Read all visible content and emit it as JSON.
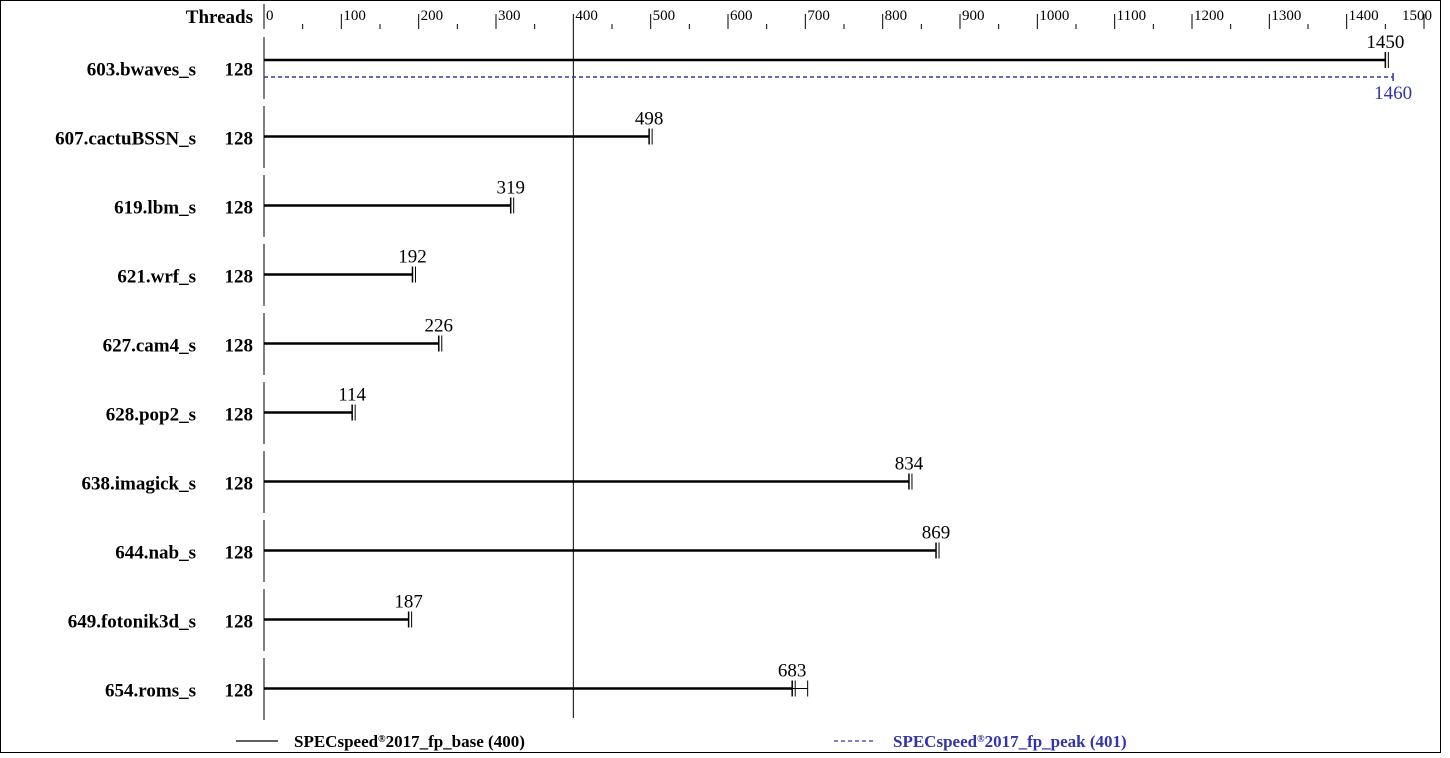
{
  "chart_data": {
    "type": "bar",
    "header": {
      "threads_label": "Threads"
    },
    "x_ticks": [
      0,
      100,
      200,
      300,
      400,
      500,
      600,
      700,
      800,
      900,
      1000,
      1100,
      1200,
      1300,
      1400,
      1500
    ],
    "xlim": [
      0,
      1500
    ],
    "reference_line": 400,
    "benchmarks": [
      {
        "name": "603.bwaves_s",
        "threads": "128",
        "base": 1450,
        "base_label": "1450",
        "peak": 1460,
        "peak_label": "1460"
      },
      {
        "name": "607.cactuBSSN_s",
        "threads": "128",
        "base": 498,
        "base_label": "498"
      },
      {
        "name": "619.lbm_s",
        "threads": "128",
        "base": 319,
        "base_label": "319"
      },
      {
        "name": "621.wrf_s",
        "threads": "128",
        "base": 192,
        "base_label": "192"
      },
      {
        "name": "627.cam4_s",
        "threads": "128",
        "base": 226,
        "base_label": "226"
      },
      {
        "name": "628.pop2_s",
        "threads": "128",
        "base": 114,
        "base_label": "114"
      },
      {
        "name": "638.imagick_s",
        "threads": "128",
        "base": 834,
        "base_label": "834"
      },
      {
        "name": "644.nab_s",
        "threads": "128",
        "base": 869,
        "base_label": "869"
      },
      {
        "name": "649.fotonik3d_s",
        "threads": "128",
        "base": 187,
        "base_label": "187"
      },
      {
        "name": "654.roms_s",
        "threads": "128",
        "base": 683,
        "base_label": "683",
        "base_max": 703
      }
    ],
    "legend": [
      {
        "style": "solid",
        "color": "#000000",
        "prefix": "SPECspeed",
        "mark": "®",
        "suffix": "2017_fp_base (400)"
      },
      {
        "style": "dashed",
        "color": "#3333aa",
        "prefix": "SPECspeed",
        "mark": "®",
        "suffix": "2017_fp_peak (401)"
      }
    ],
    "colors": {
      "base": "#000000",
      "peak": "#3333aa"
    }
  }
}
